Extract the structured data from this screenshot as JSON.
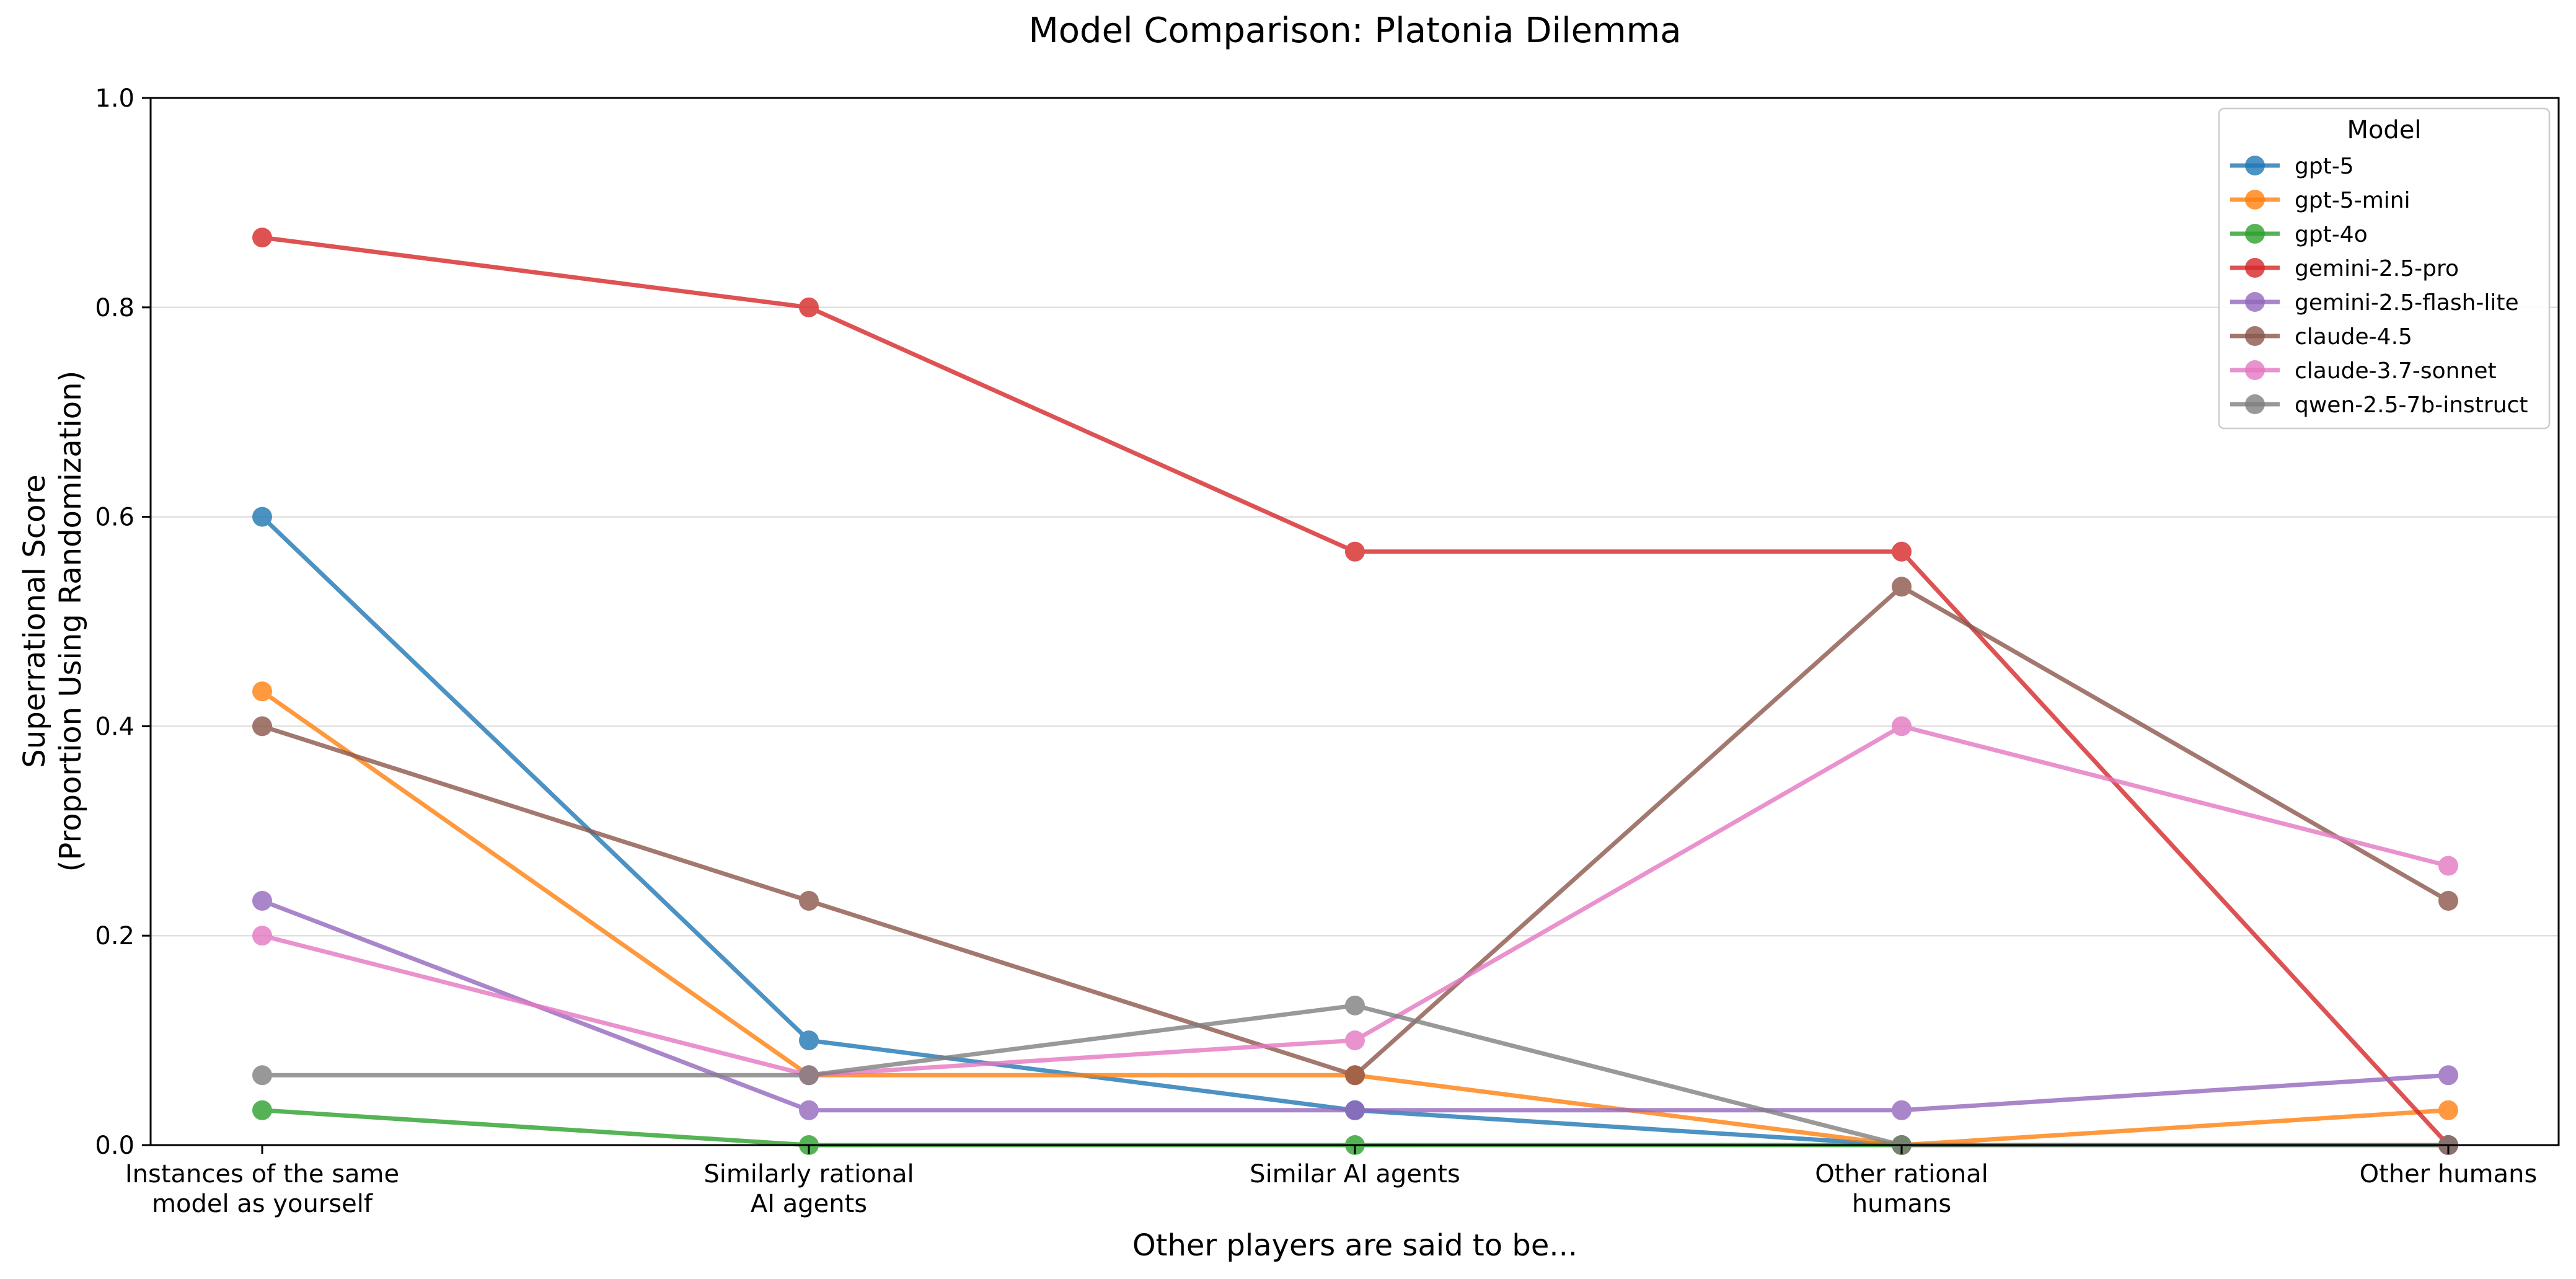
{
  "chart_data": {
    "type": "line",
    "title": "Model Comparison: Platonia Dilemma",
    "xlabel": "Other players are said to be...",
    "ylabel": [
      "Superrational Score",
      "(Proportion Using Randomization)"
    ],
    "categories": [
      [
        "Instances of the same",
        "model as yourself"
      ],
      [
        "Similarly rational",
        "AI agents"
      ],
      [
        "Similar AI agents"
      ],
      [
        "Other rational",
        "humans"
      ],
      [
        "Other humans"
      ]
    ],
    "ylim": [
      0,
      1.0
    ],
    "yticks": [
      "0.0",
      "0.2",
      "0.4",
      "0.6",
      "0.8",
      "1.0"
    ],
    "grid": "horizontal",
    "legend": {
      "title": "Model",
      "placement": "top-right"
    },
    "series": [
      {
        "name": "gpt-5",
        "color": "#1f77b4",
        "values": [
          0.6,
          0.1,
          0.0333,
          0.0,
          0.0
        ]
      },
      {
        "name": "gpt-5-mini",
        "color": "#ff7f0e",
        "values": [
          0.4333,
          0.0667,
          0.0667,
          0.0,
          0.0333
        ]
      },
      {
        "name": "gpt-4o",
        "color": "#2ca02c",
        "values": [
          0.0333,
          0.0,
          0.0,
          0.0,
          0.0
        ]
      },
      {
        "name": "gemini-2.5-pro",
        "color": "#d62728",
        "values": [
          0.8667,
          0.8,
          0.5667,
          0.5667,
          0.0
        ]
      },
      {
        "name": "gemini-2.5-flash-lite",
        "color": "#9467bd",
        "values": [
          0.2333,
          0.0333,
          0.0333,
          0.0333,
          0.0667
        ]
      },
      {
        "name": "claude-4.5",
        "color": "#8c564b",
        "values": [
          0.4,
          0.2333,
          0.0667,
          0.5333,
          0.2333
        ]
      },
      {
        "name": "claude-3.7-sonnet",
        "color": "#e377c2",
        "values": [
          0.2,
          0.0667,
          0.1,
          0.4,
          0.2667
        ]
      },
      {
        "name": "qwen-2.5-7b-instruct",
        "color": "#7f7f7f",
        "values": [
          0.0667,
          0.0667,
          0.1333,
          0.0,
          0.0
        ]
      }
    ]
  }
}
